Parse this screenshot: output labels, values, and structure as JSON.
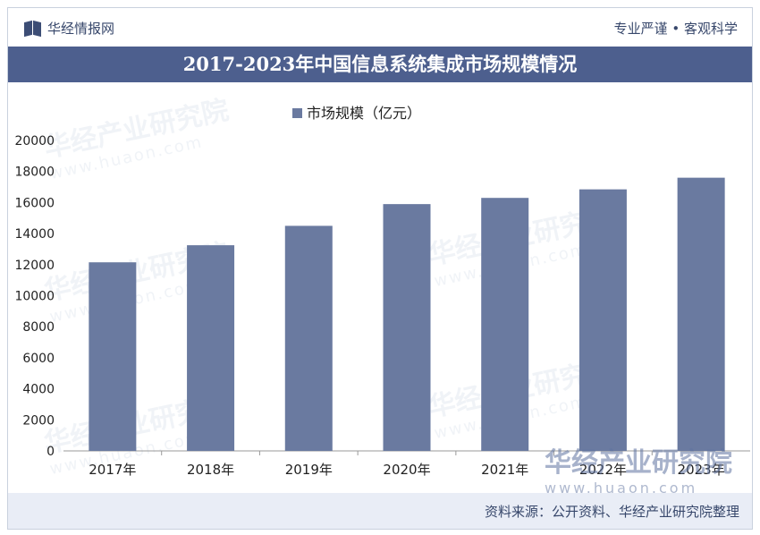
{
  "header": {
    "brand": "华经情报网",
    "slogan": "专业严谨 • 客观科学"
  },
  "watermark": {
    "text": "华经产业研究院",
    "url": "www.huaon.com"
  },
  "footer": {
    "source": "资料来源：公开资料、华经产业研究院整理"
  },
  "colors": {
    "bar": "#6a7aa0",
    "title_bg": "#4d5f8e",
    "footer_bg": "#e9edf6"
  },
  "chart_data": {
    "type": "bar",
    "title": "2017-2023年中国信息系统集成市场规模情况",
    "categories": [
      "2017年",
      "2018年",
      "2019年",
      "2020年",
      "2021年",
      "2022年",
      "2023年"
    ],
    "series": [
      {
        "name": "市场规模（亿元）",
        "values": [
          12150,
          13250,
          14500,
          15900,
          16300,
          16850,
          17600
        ]
      }
    ],
    "yticks": [
      "0",
      "2000",
      "4000",
      "6000",
      "8000",
      "10000",
      "12000",
      "14000",
      "16000",
      "18000",
      "20000"
    ],
    "ylim": [
      0,
      20000
    ],
    "legend_position": "top-center",
    "grid": false
  }
}
